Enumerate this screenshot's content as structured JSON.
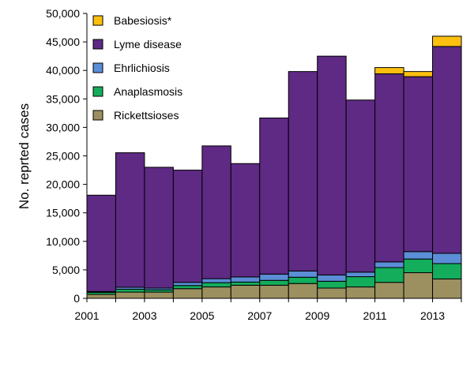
{
  "chart_data": {
    "type": "bar",
    "stacked": true,
    "title": "",
    "xlabel": "",
    "ylabel": "No. reprted cases",
    "ylim": [
      0,
      50000
    ],
    "yticks": [
      0,
      5000,
      10000,
      15000,
      20000,
      25000,
      30000,
      35000,
      40000,
      45000,
      50000
    ],
    "ytick_labels": [
      "0",
      "5,000",
      "10,000",
      "15,000",
      "20,000",
      "25,000",
      "30,000",
      "35,000",
      "40,000",
      "45,000",
      "50,000"
    ],
    "categories": [
      "2001",
      "2002",
      "2003",
      "2004",
      "2005",
      "2006",
      "2007",
      "2008",
      "2009",
      "2010",
      "2011",
      "2012",
      "2013"
    ],
    "xtick_labels": [
      "2001",
      "",
      "2003",
      "",
      "2005",
      "",
      "2007",
      "",
      "2009",
      "",
      "2011",
      "",
      "2013"
    ],
    "grid": false,
    "legend_position": "top-left",
    "series": [
      {
        "name": "Rickettsioses",
        "color": "#9c9060",
        "values": [
          700,
          1100,
          1100,
          1700,
          2000,
          2300,
          2300,
          2600,
          1800,
          2000,
          2800,
          4500,
          3400
        ]
      },
      {
        "name": "Anaplasmosis",
        "color": "#13ad5c",
        "values": [
          350,
          500,
          400,
          550,
          750,
          550,
          850,
          1100,
          1200,
          1800,
          2600,
          2400,
          2700
        ]
      },
      {
        "name": "Ehrlichiosis",
        "color": "#5b8ed6",
        "values": [
          150,
          350,
          300,
          550,
          700,
          900,
          1100,
          1100,
          1100,
          800,
          1000,
          1300,
          1800
        ]
      },
      {
        "name": "Lyme disease",
        "color": "#5e2a84",
        "values": [
          16900,
          23600,
          21200,
          19700,
          23300,
          19900,
          27400,
          35000,
          38400,
          30200,
          33000,
          30700,
          36300
        ]
      },
      {
        "name": "Babesiosis*",
        "color": "#fcbf0f",
        "values": [
          0,
          0,
          0,
          0,
          0,
          0,
          0,
          0,
          0,
          0,
          1100,
          900,
          1800
        ]
      }
    ]
  }
}
